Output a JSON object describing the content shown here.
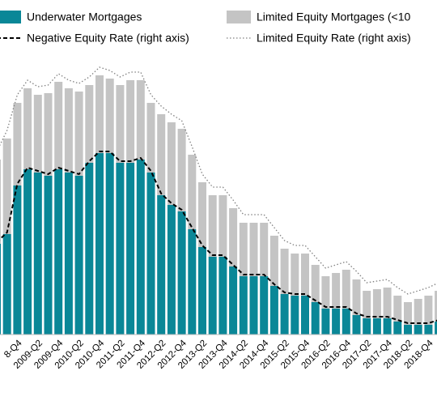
{
  "chart_data": {
    "type": "bar",
    "stacked": true,
    "categories": [
      null,
      null,
      "8-Q4",
      null,
      "2009-Q2",
      null,
      "2009-Q4",
      null,
      "2010-Q2",
      null,
      "2010-Q4",
      null,
      "2011-Q2",
      null,
      "2011-Q4",
      null,
      "2012-Q2",
      null,
      "2012-Q4",
      null,
      "2013-Q2",
      null,
      "2013-Q4",
      null,
      "2014-Q2",
      null,
      "2014-Q4",
      null,
      "2015-Q2",
      null,
      "2015-Q4",
      null,
      "2016-Q2",
      null,
      "2016-Q4",
      null,
      "2017-Q2",
      null,
      "2017-Q4",
      null,
      "2018-Q2",
      null,
      "2018-Q4",
      null,
      "201"
    ],
    "series": [
      {
        "name": "Underwater Mortgages",
        "color": "#0a8797",
        "type": "bar",
        "values": [
          28,
          31,
          46,
          51,
          50,
          49,
          51,
          50,
          49,
          53,
          56,
          56,
          53,
          53,
          54,
          50,
          43,
          40,
          38,
          32.5,
          27,
          24,
          24,
          21,
          18,
          18,
          18,
          15,
          12.5,
          12,
          12,
          10,
          8,
          8,
          8,
          6,
          5,
          5,
          5,
          4,
          3,
          3,
          3,
          4,
          4
        ]
      },
      {
        "name": "Limited Equity Mortgages (<10",
        "color": "#c4c4c4",
        "type": "bar",
        "values": [
          26,
          29.5,
          25.5,
          25,
          24,
          25.5,
          27,
          26,
          26,
          24,
          24,
          23,
          24,
          25.5,
          24.5,
          21.5,
          25,
          25.5,
          25.5,
          23,
          20,
          19,
          19,
          18,
          16.5,
          16.5,
          16.5,
          15.5,
          14,
          13,
          13,
          11.5,
          10,
          11,
          12,
          11,
          8.5,
          9,
          9.5,
          8,
          7,
          8,
          9,
          9.5,
          9.5
        ]
      },
      {
        "name": "Negative Equity Rate (right axis)",
        "color": "#000000",
        "type": "line",
        "dash": "dashed",
        "axis": "y2",
        "values": [
          28.5,
          31.5,
          46.5,
          51.5,
          50.5,
          49.5,
          51.5,
          50.5,
          49.5,
          53.5,
          56.5,
          56.5,
          53.5,
          53.5,
          54.5,
          50.5,
          43.5,
          40.5,
          38.5,
          33,
          27.5,
          24.5,
          24.5,
          21.5,
          18.5,
          18.5,
          18.5,
          15.5,
          13,
          12.5,
          12.5,
          10.5,
          8.5,
          8.5,
          8.5,
          6.5,
          5.5,
          5.5,
          5.5,
          4.5,
          3.5,
          3.5,
          3.5,
          4.5,
          4.5
        ]
      },
      {
        "name": "Limited Equity Rate (right axis)",
        "color": "#808080",
        "type": "line",
        "dash": "dotted",
        "axis": "y2",
        "values": [
          56.5,
          63,
          74,
          78.5,
          76.5,
          77,
          80.5,
          78.5,
          77.5,
          79.5,
          82.5,
          81.5,
          79.5,
          81,
          81,
          74,
          70.5,
          68,
          66,
          58,
          49.5,
          45.5,
          45.5,
          41.5,
          37,
          37,
          37,
          33,
          29,
          27.5,
          27.5,
          24,
          20.5,
          21.5,
          22.5,
          19.5,
          16,
          16.5,
          17,
          14.5,
          12.5,
          13.5,
          14.5,
          16,
          16
        ]
      }
    ],
    "ylim": [
      0,
      100
    ],
    "y2lim": [
      0,
      100
    ]
  }
}
